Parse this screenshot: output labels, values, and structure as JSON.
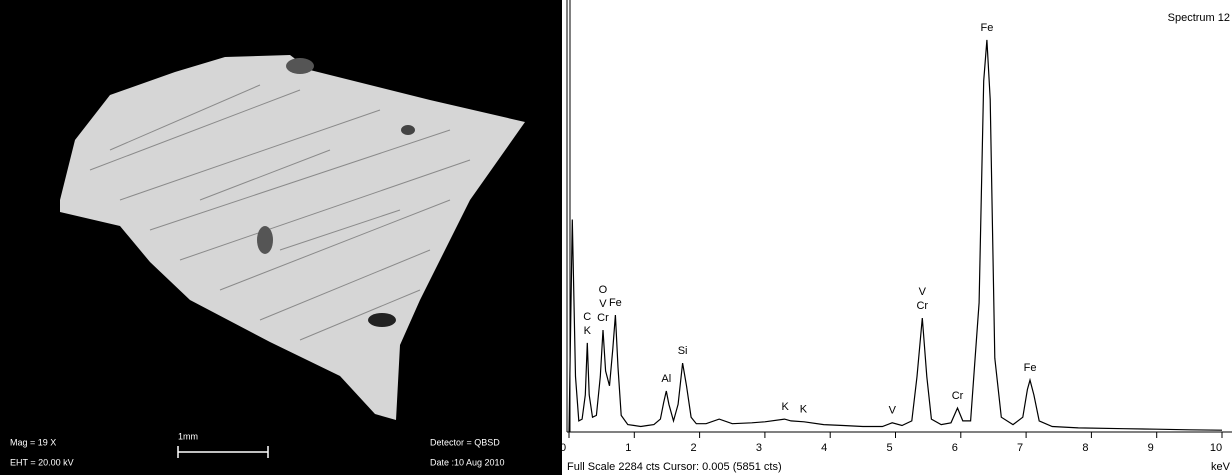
{
  "image": {
    "labels": {
      "mag": "Mag =   19 X",
      "eht": "EHT = 20.00 kV",
      "scale": "1mm",
      "detector": "Detector = QBSD",
      "date": "Date :10 Aug 2010"
    }
  },
  "chart_data": {
    "type": "line",
    "title": "Spectrum 12",
    "x_label": "keV",
    "footer": "Full Scale 2284 cts Cursor: 0.005  (5851 cts)",
    "x": [
      0.0,
      0.05,
      0.1,
      0.15,
      0.2,
      0.25,
      0.28,
      0.31,
      0.36,
      0.42,
      0.48,
      0.52,
      0.56,
      0.62,
      0.67,
      0.71,
      0.75,
      0.8,
      0.9,
      1.0,
      1.1,
      1.2,
      1.3,
      1.4,
      1.45,
      1.49,
      1.53,
      1.6,
      1.67,
      1.74,
      1.8,
      1.87,
      1.95,
      2.1,
      2.3,
      2.5,
      2.8,
      3.0,
      3.3,
      3.4,
      3.6,
      3.9,
      4.2,
      4.5,
      4.8,
      4.95,
      5.1,
      5.25,
      5.33,
      5.41,
      5.48,
      5.55,
      5.7,
      5.85,
      5.95,
      6.03,
      6.15,
      6.28,
      6.35,
      6.4,
      6.45,
      6.52,
      6.62,
      6.8,
      6.95,
      7.02,
      7.06,
      7.12,
      7.2,
      7.4,
      7.8,
      8.5,
      9.0,
      9.5,
      10.0
    ],
    "values": [
      0,
      1150,
      300,
      60,
      70,
      200,
      482,
      200,
      80,
      90,
      300,
      552,
      330,
      250,
      450,
      633,
      350,
      90,
      40,
      35,
      30,
      35,
      40,
      70,
      160,
      222,
      150,
      60,
      150,
      373,
      250,
      80,
      45,
      45,
      70,
      45,
      50,
      55,
      70,
      60,
      55,
      40,
      35,
      30,
      30,
      50,
      35,
      60,
      300,
      617,
      300,
      70,
      40,
      50,
      130,
      60,
      60,
      700,
      1900,
      2122,
      1800,
      400,
      80,
      40,
      80,
      230,
      281,
      200,
      60,
      30,
      22,
      18,
      15,
      12,
      10
    ],
    "color": "#000000",
    "xlim": [
      0,
      10
    ],
    "ylim": [
      0,
      2284
    ],
    "xticks": [
      0,
      1,
      2,
      3,
      4,
      5,
      6,
      7,
      8,
      9,
      10
    ],
    "annotations": [
      {
        "x": 0.28,
        "lines": [
          "C",
          "K"
        ]
      },
      {
        "x": 0.52,
        "lines": [
          "O",
          "V",
          "Cr"
        ]
      },
      {
        "x": 0.71,
        "lines": [
          "Fe"
        ]
      },
      {
        "x": 1.49,
        "lines": [
          "Al"
        ]
      },
      {
        "x": 1.74,
        "lines": [
          "Si"
        ]
      },
      {
        "x": 3.31,
        "lines": [
          "K"
        ]
      },
      {
        "x": 3.59,
        "lines": [
          "K"
        ]
      },
      {
        "x": 4.95,
        "lines": [
          "V"
        ]
      },
      {
        "x": 5.41,
        "lines": [
          "V",
          "Cr"
        ]
      },
      {
        "x": 5.95,
        "lines": [
          "Cr"
        ]
      },
      {
        "x": 6.4,
        "lines": [
          "Fe"
        ]
      },
      {
        "x": 7.06,
        "lines": [
          "Fe"
        ]
      }
    ]
  }
}
